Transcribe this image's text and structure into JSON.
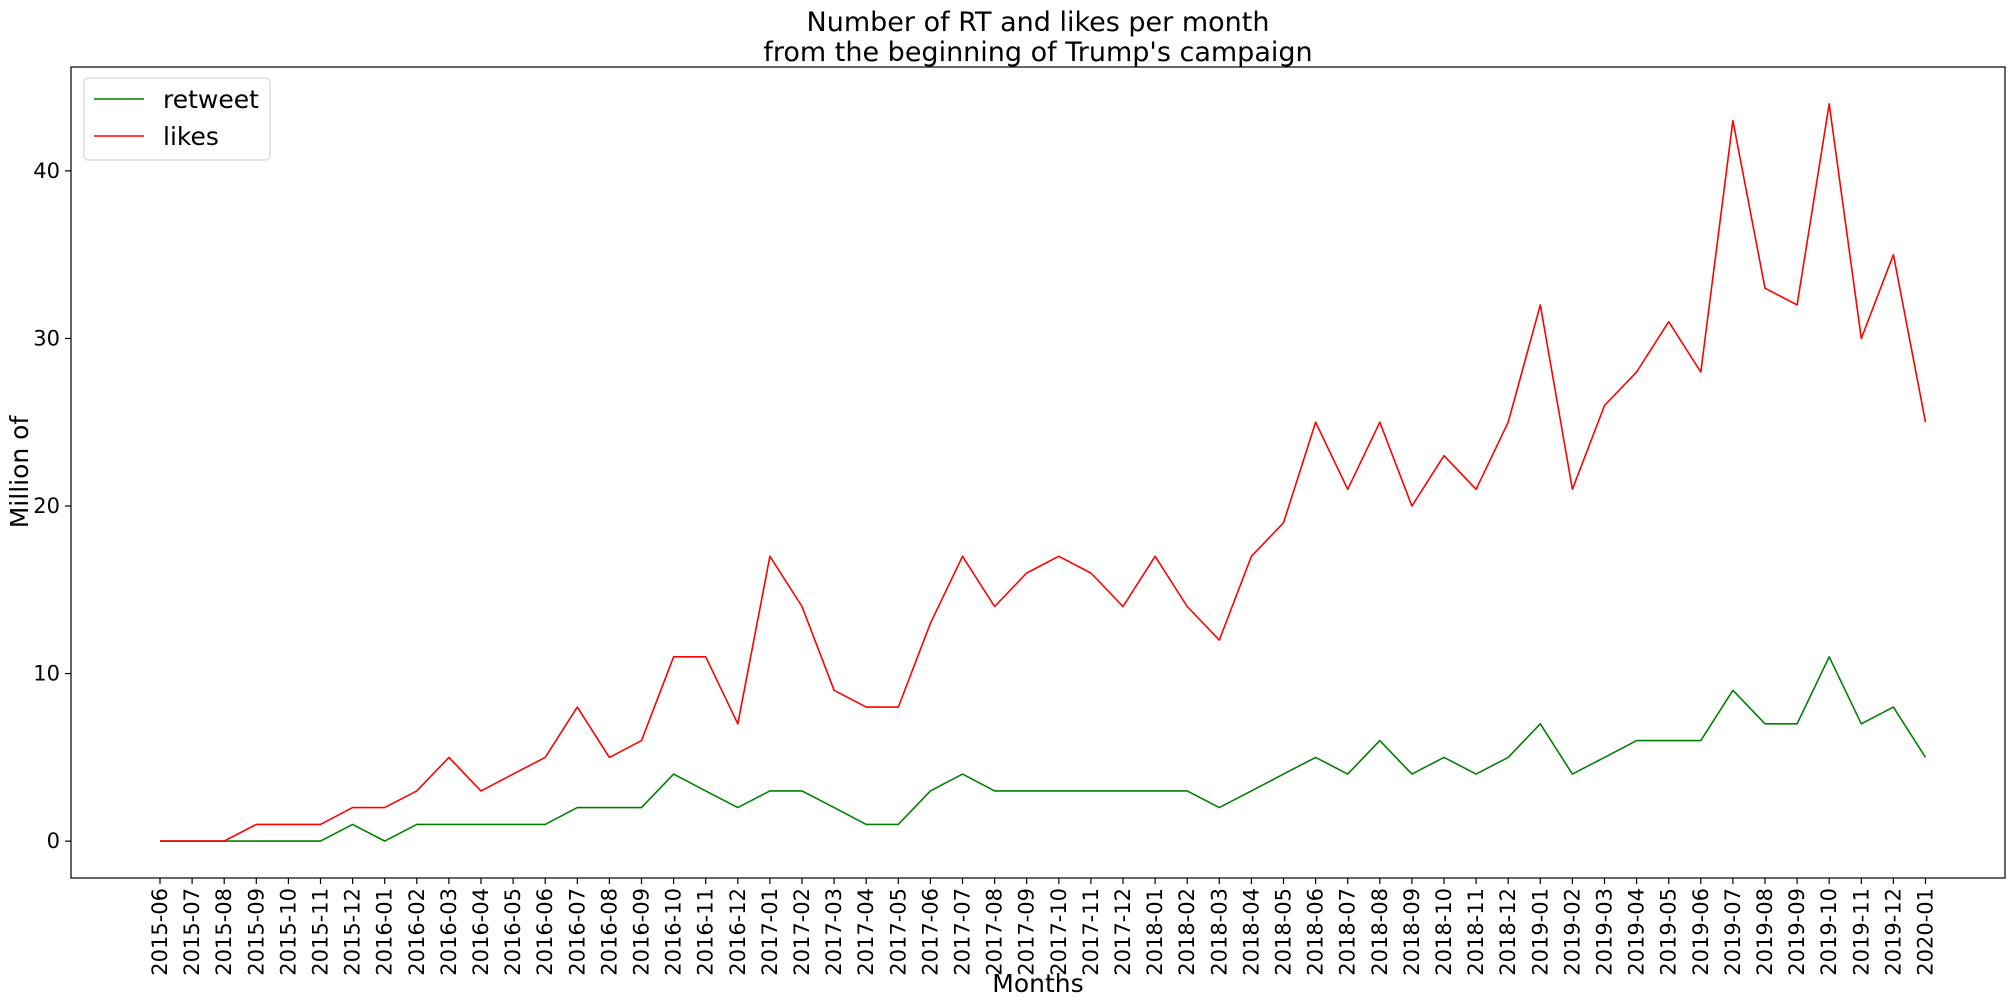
{
  "chart_data": {
    "type": "line",
    "title_line1": "Number of RT and likes per month",
    "title_line2": "from the beginning of Trump's campaign",
    "xlabel": "Months",
    "ylabel": "Million of",
    "ylim": [
      -2.2,
      46.2
    ],
    "yticks": [
      0,
      10,
      20,
      30,
      40
    ],
    "grid": false,
    "legend_position": "top-left",
    "categories": [
      "2015-06",
      "2015-07",
      "2015-08",
      "2015-09",
      "2015-10",
      "2015-11",
      "2015-12",
      "2016-01",
      "2016-02",
      "2016-03",
      "2016-04",
      "2016-05",
      "2016-06",
      "2016-07",
      "2016-08",
      "2016-09",
      "2016-10",
      "2016-11",
      "2016-12",
      "2017-01",
      "2017-02",
      "2017-03",
      "2017-04",
      "2017-05",
      "2017-06",
      "2017-07",
      "2017-08",
      "2017-09",
      "2017-10",
      "2017-11",
      "2017-12",
      "2018-01",
      "2018-02",
      "2018-03",
      "2018-04",
      "2018-05",
      "2018-06",
      "2018-07",
      "2018-08",
      "2018-09",
      "2018-10",
      "2018-11",
      "2018-12",
      "2019-01",
      "2019-02",
      "2019-03",
      "2019-04",
      "2019-05",
      "2019-06",
      "2019-07",
      "2019-08",
      "2019-09",
      "2019-10",
      "2019-11",
      "2019-12",
      "2020-01"
    ],
    "series": [
      {
        "name": "retweet",
        "color": "#008000",
        "values": [
          0,
          0,
          0,
          0,
          0,
          0,
          1,
          0,
          1,
          1,
          1,
          1,
          1,
          2,
          2,
          2,
          4,
          3,
          2,
          3,
          3,
          2,
          1,
          1,
          3,
          4,
          3,
          3,
          3,
          3,
          3,
          3,
          3,
          2,
          3,
          4,
          5,
          4,
          6,
          4,
          5,
          4,
          5,
          7,
          4,
          5,
          6,
          6,
          6,
          9,
          7,
          7,
          11,
          7,
          8,
          5
        ]
      },
      {
        "name": "likes",
        "color": "#ff0000",
        "values": [
          0,
          0,
          0,
          1,
          1,
          1,
          2,
          2,
          3,
          5,
          3,
          4,
          5,
          8,
          5,
          6,
          11,
          11,
          7,
          17,
          14,
          9,
          8,
          8,
          13,
          17,
          14,
          16,
          17,
          16,
          14,
          17,
          14,
          12,
          17,
          19,
          25,
          21,
          25,
          20,
          23,
          21,
          25,
          32,
          21,
          26,
          28,
          31,
          28,
          43,
          33,
          32,
          44,
          30,
          35,
          25
        ]
      }
    ]
  }
}
